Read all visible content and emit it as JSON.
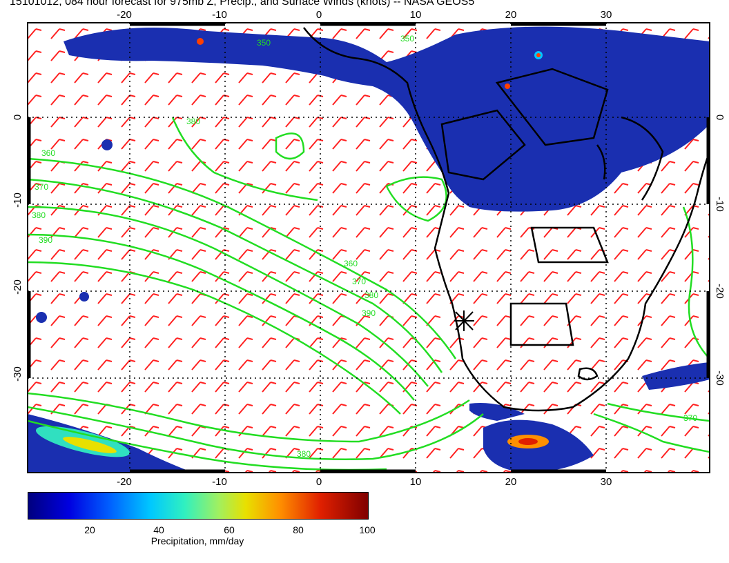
{
  "title": "15101012, 084 hour forecast for 975mb Z, Precip., and Surface Winds (knots) -- NASA GEOS5",
  "map": {
    "lon_ticks": [
      "-20",
      "-10",
      "0",
      "10",
      "20",
      "30"
    ],
    "lat_ticks": [
      "0",
      "-10",
      "-20",
      "-30"
    ],
    "contour_labels": [
      "350",
      "360",
      "370",
      "380",
      "390",
      "380",
      "360",
      "370",
      "380",
      "390",
      "350",
      "370",
      "380"
    ],
    "contour_color": "#22dd22",
    "wind_barb_color": "#ff2020",
    "precip_color": "#1a2fb0",
    "coast_color": "#000000"
  },
  "colorbar": {
    "title": "Precipitation, mm/day",
    "ticks": [
      "20",
      "40",
      "60",
      "80",
      "100"
    ]
  }
}
